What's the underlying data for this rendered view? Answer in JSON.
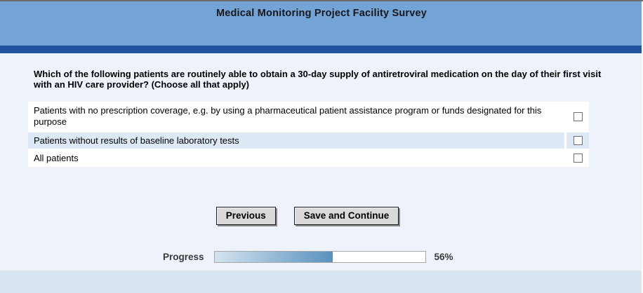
{
  "header": {
    "title": "Medical Monitoring Project Facility Survey"
  },
  "question": {
    "text": "Which of the following patients are routinely able to obtain a 30-day supply of antiretroviral medication on the day of their first visit with an HIV care provider? (Choose all that apply)"
  },
  "options": [
    {
      "label": "Patients with no prescription coverage, e.g. by using a pharmaceutical patient assistance program or funds designated for this purpose",
      "checked": false
    },
    {
      "label": "Patients without results of baseline laboratory tests",
      "checked": false
    },
    {
      "label": "All patients",
      "checked": false
    }
  ],
  "buttons": {
    "previous": "Previous",
    "save_and_continue": "Save and Continue"
  },
  "progress": {
    "label": "Progress",
    "percent": 56,
    "percent_text": "56%"
  },
  "colors": {
    "banner": "#74a4d5",
    "stripe": "#1f549d",
    "page_background": "#eef2fa",
    "row_highlight": "#dde9f5",
    "footer": "#d9e4f1",
    "button_face": "#d9d9d9",
    "progress_fill_start": "#d5e3f0",
    "progress_fill_end": "#5892c0"
  }
}
